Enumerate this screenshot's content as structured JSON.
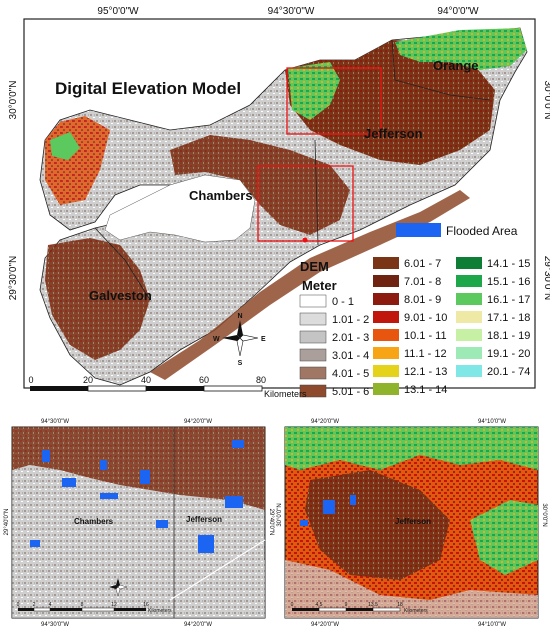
{
  "main_map": {
    "title": "Digital Elevation Model",
    "top_coords": [
      "95°0'0\"W",
      "94°30'0\"W",
      "94°0'0\"W"
    ],
    "left_coords": [
      "30°0'0\"N",
      "29°30'0\"N"
    ],
    "right_coords": [
      "30°0'0\"N",
      "29°30'0\"N"
    ],
    "counties": [
      "Orange",
      "Jefferson",
      "Chambers",
      "Galveston"
    ],
    "flood_label": "Flooded Area",
    "scale_ticks": [
      "0",
      "20",
      "40",
      "60",
      "80"
    ],
    "scale_unit": "Kilometers"
  },
  "legend": {
    "title": "DEM",
    "unit": "Meter",
    "col1": [
      {
        "label": "0 - 1",
        "color": "#ffffff"
      },
      {
        "label": "1.01 - 2",
        "color": "#dcdcdc"
      },
      {
        "label": "2.01 - 3",
        "color": "#c4c4c4"
      },
      {
        "label": "3.01 - 4",
        "color": "#ab9f9b"
      },
      {
        "label": "4.01 - 5",
        "color": "#a07665"
      },
      {
        "label": "5.01 - 6",
        "color": "#8e4a2c"
      }
    ],
    "col2": [
      {
        "label": "6.01 - 7",
        "color": "#7a3516"
      },
      {
        "label": "7.01 - 8",
        "color": "#6e2410"
      },
      {
        "label": "8.01 - 9",
        "color": "#8c1a0e"
      },
      {
        "label": "9.01 - 10",
        "color": "#c0160c"
      },
      {
        "label": "10.1 - 11",
        "color": "#e8550f"
      },
      {
        "label": "11.1 - 12",
        "color": "#f7a514"
      },
      {
        "label": "12.1 - 13",
        "color": "#e5d21a"
      },
      {
        "label": "13.1 - 14",
        "color": "#8fb32b"
      }
    ],
    "col3": [
      {
        "label": "14.1 - 15",
        "color": "#0e7d36"
      },
      {
        "label": "15.1 - 16",
        "color": "#1ea64a"
      },
      {
        "label": "16.1 - 17",
        "color": "#5bc95e"
      },
      {
        "label": "17.1 - 18",
        "color": "#efe9a6"
      },
      {
        "label": "18.1 - 19",
        "color": "#c6f0a4"
      },
      {
        "label": "19.1 - 20",
        "color": "#9eeab6"
      },
      {
        "label": "20.1 - 74",
        "color": "#7fe7e6"
      }
    ]
  },
  "inset_left": {
    "top_coords": [
      "94°30'0\"W",
      "94°20'0\"W"
    ],
    "bottom_coords": [
      "94°30'0\"W",
      "94°20'0\"W"
    ],
    "left_coord": "29°40'0\"N",
    "right_coord": "29°40'0\"N",
    "labels": [
      "Chambers",
      "Jefferson"
    ],
    "scale_ticks": [
      "0",
      "2",
      "4",
      "8",
      "12",
      "16"
    ],
    "scale_unit": "Kilometers"
  },
  "inset_right": {
    "top_coords": [
      "94°20'0\"W",
      "94°10'0\"W"
    ],
    "bottom_coords": [
      "94°20'0\"W",
      "94°10'0\"W"
    ],
    "left_coord": "30°0'0\"N",
    "right_coord": "30°0'0\"N",
    "labels": [
      "Jefferson"
    ],
    "scale_ticks": [
      "0",
      "4.5",
      "9",
      "13.5",
      "18"
    ],
    "scale_unit": "Kilometers"
  },
  "north_arrow": {
    "n": "N",
    "s": "S",
    "e": "E",
    "w": "W"
  }
}
